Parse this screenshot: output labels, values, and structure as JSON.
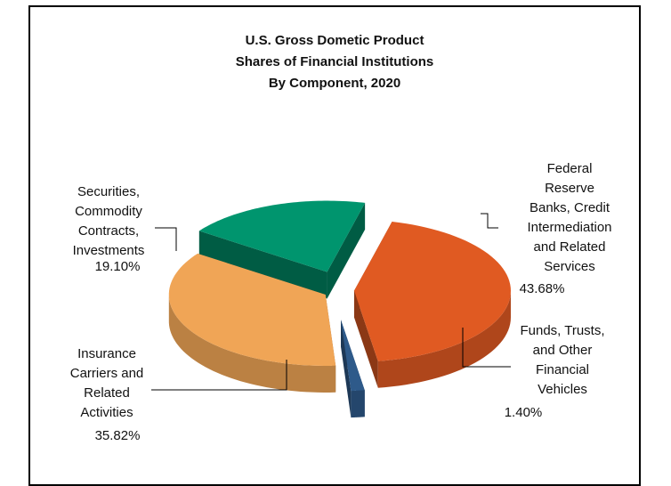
{
  "chart_data": {
    "type": "pie",
    "title_lines": [
      "U.S. Gross Dometic Product",
      "Shares of Financial Institutions",
      "By Component, 2020"
    ],
    "slices": [
      {
        "name_lines": [
          "Federal",
          "Reserve",
          "Banks, Credit",
          "Intermediation",
          "and Related",
          "Services"
        ],
        "value_label": "43.68%",
        "value": 43.68,
        "color": "#E05A22"
      },
      {
        "name_lines": [
          "Funds, Trusts,",
          "and Other",
          "Financial",
          "Vehicles"
        ],
        "value_label": "1.40%",
        "value": 1.4,
        "color": "#2E5A8A"
      },
      {
        "name_lines": [
          "Insurance",
          "Carriers and",
          "Related",
          "Activities"
        ],
        "value_label": "35.82%",
        "value": 35.82,
        "color": "#F0A556"
      },
      {
        "name_lines": [
          "Securities,",
          "Commodity",
          "Contracts,",
          "Investments"
        ],
        "value_label": "19.10%",
        "value": 19.1,
        "color": "#00956E"
      }
    ],
    "legend": "none",
    "style": "3d-exploded"
  }
}
